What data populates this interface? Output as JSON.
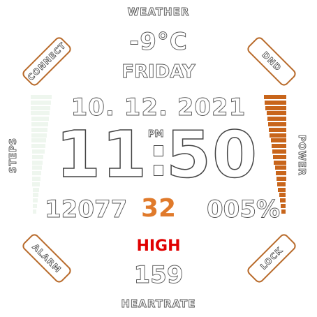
{
  "weather": {
    "label": "WEATHER",
    "temperature": "-9°C"
  },
  "date": {
    "weekday": "FRIDAY",
    "full": "10. 12. 2021"
  },
  "time": {
    "hours": "11",
    "minutes": "50",
    "ampm": "PM"
  },
  "stats": {
    "steps_value": "12077",
    "center_value": "32",
    "power_value": "005%"
  },
  "labels": {
    "steps": "STEPS",
    "power": "POWER"
  },
  "heartrate": {
    "status": "HIGH",
    "value": "159",
    "label": "HEARTRATE"
  },
  "buttons": {
    "connect": "CONNECT",
    "dnd": "DND",
    "alarm": "ALARM",
    "lock": "LOCK"
  },
  "colors": {
    "accent": "#e07a2b",
    "warning": "#e00000",
    "border": "#b86a2a",
    "steps_bar": "#eef6ee",
    "power_bar": "#c8651b"
  }
}
